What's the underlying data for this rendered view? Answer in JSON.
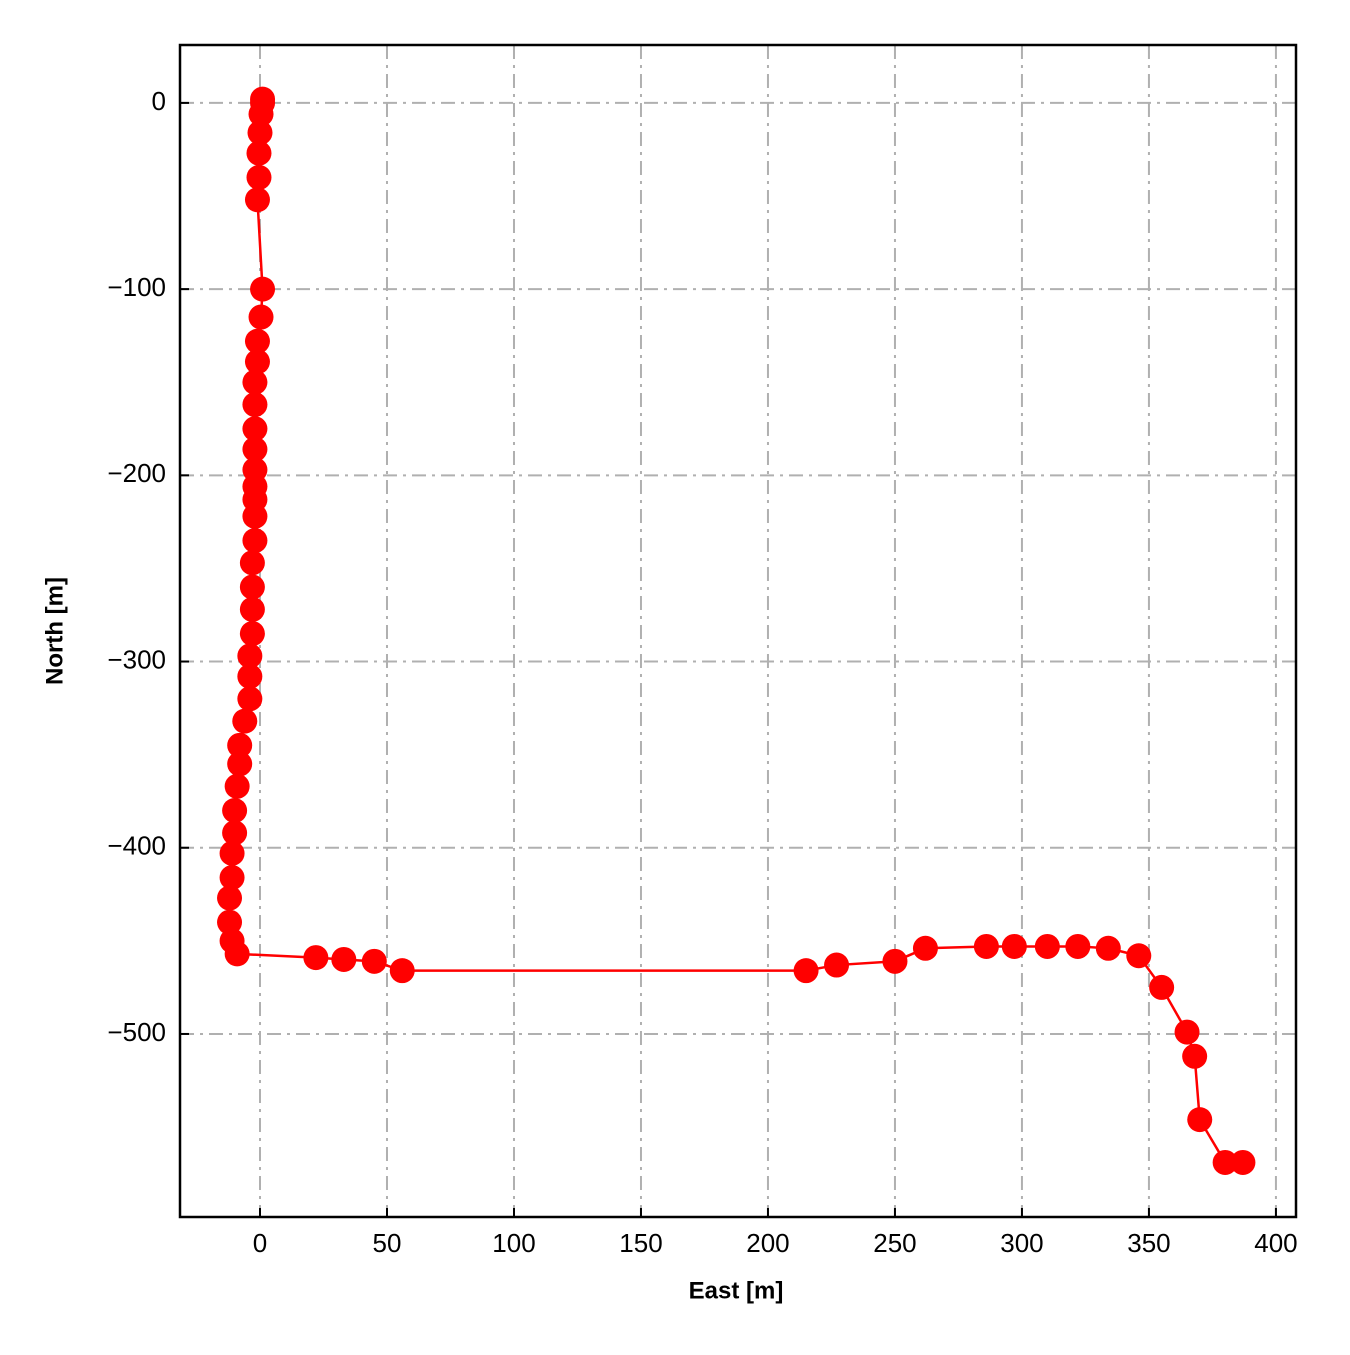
{
  "chart_data": {
    "type": "line",
    "x_label": "East [m]",
    "y_label": "North [m]",
    "xlim": [
      -31.5,
      407.9
    ],
    "ylim": [
      -598.3,
      31.1
    ],
    "xticks": [
      0,
      50,
      100,
      150,
      200,
      250,
      300,
      350,
      400
    ],
    "yticks": [
      0,
      {
        "value": -100,
        "label": "−100"
      },
      {
        "value": -200,
        "label": "−200"
      },
      {
        "value": -300,
        "label": "−300"
      },
      {
        "value": -400,
        "label": "−400"
      },
      {
        "value": -500,
        "label": "−500"
      }
    ],
    "grid": true,
    "marker": true,
    "series": [
      {
        "color": "#ff0000",
        "x": [
          1,
          1,
          0.4,
          0,
          -0.4,
          -0.4,
          -1,
          1,
          0.4,
          -1,
          -1,
          -2,
          -2,
          -2,
          -2,
          -2,
          -2,
          -2,
          -2,
          -2,
          -3,
          -3,
          -3,
          -3,
          -4,
          -4,
          -4,
          -6,
          -8,
          -8,
          -9,
          -10,
          -10,
          -11,
          -11,
          -12,
          -12,
          -11,
          -9,
          22,
          33,
          45,
          56,
          215,
          227,
          250,
          262,
          286,
          297,
          310,
          322,
          334,
          346,
          355,
          365,
          368,
          370,
          380,
          387
        ],
        "values": [
          2,
          0,
          -6,
          -16,
          -27,
          -40,
          -52,
          -100,
          -115,
          -128,
          -139,
          -150,
          -162,
          -175,
          -186,
          -197,
          -206,
          -213,
          -222,
          -235,
          -247,
          -260,
          -272,
          -285,
          -297,
          -308,
          -320,
          -332,
          -345,
          -355,
          -367,
          -380,
          -392,
          -403,
          -416,
          -427,
          -440,
          -450,
          -457,
          -459,
          -460,
          -461,
          -466,
          -466,
          -463,
          -461,
          -454,
          -453,
          -453,
          -453,
          -453,
          -454,
          -458,
          -475,
          -499,
          -512,
          -546,
          -569,
          -569
        ]
      }
    ]
  }
}
